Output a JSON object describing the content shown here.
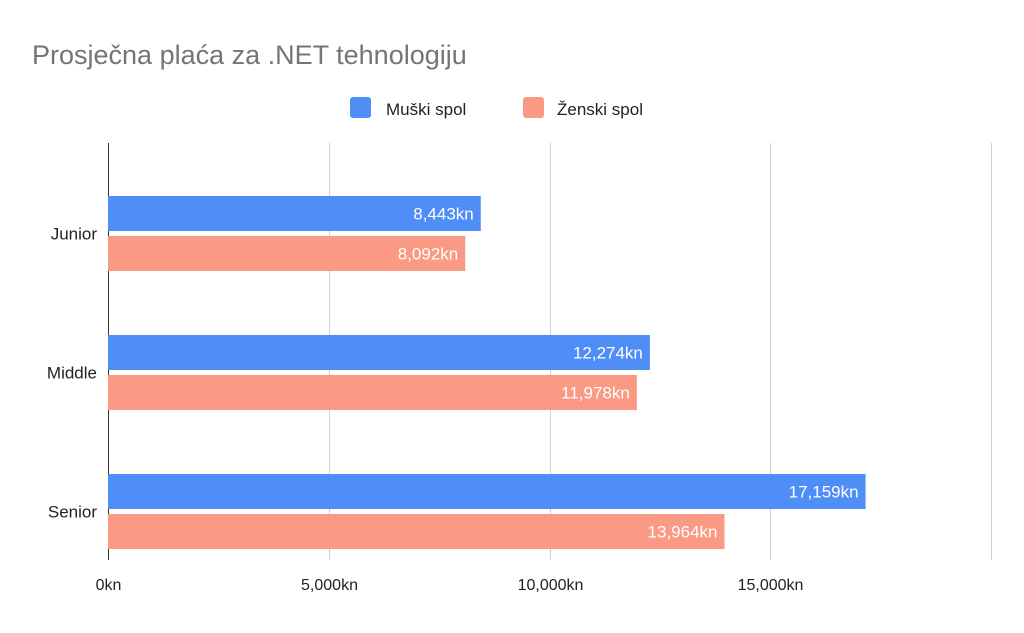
{
  "chart_data": {
    "type": "bar",
    "orientation": "horizontal",
    "title": "Prosječna plaća za .NET tehnologiju",
    "categories": [
      "Junior",
      "Middle",
      "Senior"
    ],
    "series": [
      {
        "name": "Muški spol",
        "color": "#4f8ef7",
        "values": [
          8443,
          12274,
          17159
        ],
        "labels": [
          "8,443kn",
          "12,274kn",
          "17,159kn"
        ]
      },
      {
        "name": "Ženski spol",
        "color": "#fa9a84",
        "values": [
          8092,
          11978,
          13964
        ],
        "labels": [
          "8,092kn",
          "11,978kn",
          "13,964kn"
        ]
      }
    ],
    "xlim": [
      0,
      20000
    ],
    "xticks": [
      0,
      5000,
      10000,
      15000,
      20000
    ],
    "xtick_labels": [
      "0kn",
      "5,000kn",
      "10,000kn",
      "15,000kn",
      ""
    ],
    "xlabel": "",
    "ylabel": "",
    "grid": true,
    "legend_position": "top"
  }
}
